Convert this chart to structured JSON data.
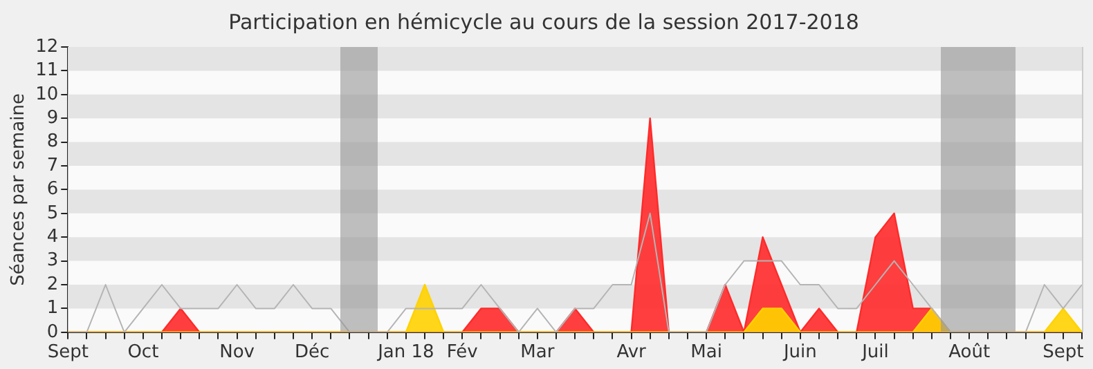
{
  "chart_data": {
    "type": "area",
    "title": "Participation en hémicycle au cours de la session 2017-2018",
    "ylabel": "Séances par semaine",
    "categories": [
      "Sept",
      null,
      null,
      null,
      "Oct",
      null,
      null,
      null,
      null,
      "Nov",
      null,
      null,
      null,
      "Déc",
      null,
      null,
      null,
      null,
      "Jan 18",
      null,
      null,
      "Fév",
      null,
      null,
      null,
      "Mar",
      null,
      null,
      null,
      null,
      "Avr",
      null,
      null,
      null,
      "Mai",
      null,
      null,
      null,
      null,
      "Juin",
      null,
      null,
      null,
      "Juil",
      null,
      null,
      null,
      null,
      "Août",
      null,
      null,
      null,
      null,
      "Sept",
      null
    ],
    "series": [
      {
        "type": "line",
        "color": "#b4b4b4",
        "values": [
          0,
          0,
          2,
          0,
          1,
          2,
          1,
          1,
          1,
          2,
          1,
          1,
          2,
          1,
          1,
          0,
          0,
          0,
          1,
          1,
          1,
          1,
          2,
          1,
          0,
          1,
          0,
          1,
          1,
          2,
          2,
          5,
          0,
          0,
          0,
          2,
          3,
          3,
          3,
          2,
          2,
          1,
          1,
          2,
          3,
          2,
          1,
          0,
          0,
          0,
          0,
          0,
          2,
          1,
          2
        ]
      },
      {
        "color": "#ff2a2a",
        "values": [
          0,
          0,
          0,
          0,
          0,
          0,
          1,
          0,
          0,
          0,
          0,
          0,
          0,
          0,
          0,
          0,
          0,
          0,
          0,
          0,
          0,
          0,
          1,
          1,
          0,
          0,
          0,
          1,
          0,
          0,
          0,
          9,
          0,
          0,
          0,
          2,
          0,
          4,
          2,
          0,
          1,
          0,
          0,
          4,
          5,
          1,
          1,
          0,
          0,
          0,
          0,
          0,
          0,
          0,
          0
        ]
      },
      {
        "color": "#ffd200",
        "values": [
          0,
          0,
          0,
          0,
          0,
          0,
          0,
          0,
          0,
          0,
          0,
          0,
          0,
          0,
          0,
          0,
          0,
          0,
          0,
          2,
          0,
          0,
          0,
          0,
          0,
          0,
          0,
          0,
          0,
          0,
          0,
          0,
          0,
          0,
          0,
          0,
          0,
          1,
          1,
          0,
          0,
          0,
          0,
          0,
          0,
          0,
          1,
          0,
          0,
          0,
          0,
          0,
          0,
          1,
          0
        ]
      }
    ],
    "ylim": [
      0,
      12
    ],
    "yticks": [
      0,
      1,
      2,
      3,
      4,
      5,
      6,
      7,
      8,
      9,
      10,
      11,
      12
    ],
    "legend": false,
    "marker": "none",
    "line_style": "solid"
  }
}
